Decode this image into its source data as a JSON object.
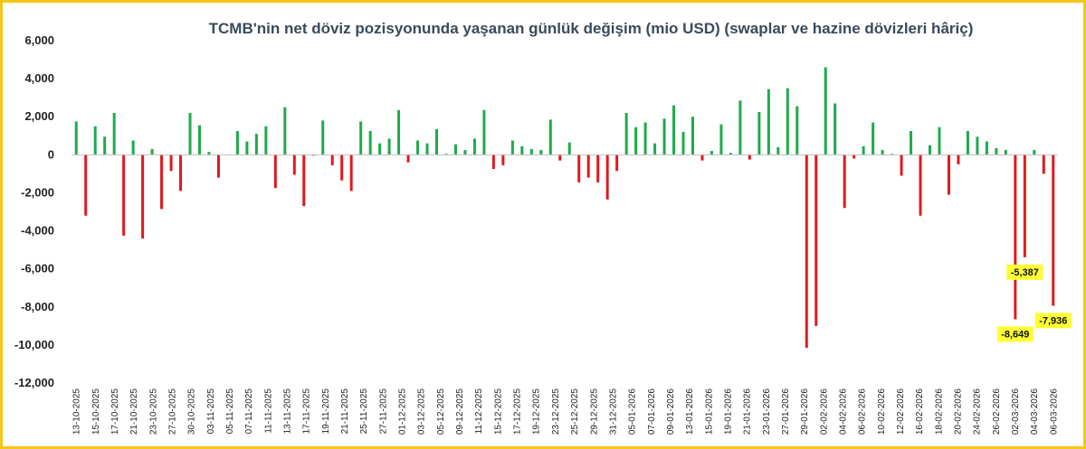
{
  "chart_data": {
    "type": "bar",
    "title": "TCMB'nin net döviz pozisyonunda yaşanan günlük değişim (mio USD) (swaplar ve hazine dövizleri hâriç)",
    "xlabel": "",
    "ylabel": "",
    "ylim": [
      -12000,
      6000
    ],
    "yticks": [
      6000,
      4000,
      2000,
      0,
      -2000,
      -4000,
      -6000,
      -8000,
      -10000,
      -12000
    ],
    "ytick_labels": [
      "6,000",
      "4,000",
      "2,000",
      "0",
      "-2,000",
      "-4,000",
      "-6,000",
      "-8,000",
      "-10,000",
      "-12,000"
    ],
    "grid": false,
    "legend": "none",
    "positive_color": "#1faa4b",
    "negative_color": "#e0191e",
    "highlight_color": "#ffff33",
    "tick_labels": [
      "13-10-2025",
      "15-10-2025",
      "17-10-2025",
      "21-10-2025",
      "23-10-2025",
      "27-10-2025",
      "30-10-2025",
      "03-11-2025",
      "05-11-2025",
      "07-11-2025",
      "11-11-2025",
      "13-11-2025",
      "17-11-2025",
      "19-11-2025",
      "21-11-2025",
      "25-11-2025",
      "27-11-2025",
      "01-12-2025",
      "03-12-2025",
      "05-12-2025",
      "09-12-2025",
      "11-12-2025",
      "15-12-2025",
      "17-12-2025",
      "19-12-2025",
      "23-12-2025",
      "25-12-2025",
      "29-12-2025",
      "31-12-2025",
      "05-01-2026",
      "07-01-2026",
      "09-01-2026",
      "13-01-2026",
      "15-01-2026",
      "19-01-2026",
      "21-01-2026",
      "23-01-2026",
      "27-01-2026",
      "29-01-2026",
      "02-02-2026",
      "04-02-2026",
      "06-02-2026",
      "10-02-2026",
      "12-02-2026",
      "16-02-2026",
      "18-02-2026",
      "20-02-2026",
      "24-02-2026",
      "26-02-2026",
      "02-03-2026",
      "04-03-2026",
      "06-03-2026"
    ],
    "values": [
      1750,
      -3200,
      1500,
      950,
      2200,
      -4250,
      750,
      -4400,
      300,
      -2850,
      -850,
      -1900,
      2200,
      1550,
      150,
      -1200,
      0,
      1250,
      700,
      1100,
      1500,
      -1750,
      2500,
      -1050,
      -2700,
      -50,
      1800,
      -550,
      -1350,
      -1900,
      1750,
      1250,
      600,
      850,
      2350,
      -400,
      750,
      600,
      1350,
      50,
      550,
      250,
      850,
      2350,
      -750,
      -550,
      750,
      450,
      300,
      250,
      1850,
      -300,
      650,
      -1450,
      -1200,
      -1450,
      -2350,
      -850,
      2200,
      1450,
      1700,
      600,
      1900,
      2600,
      1200,
      2000,
      -300,
      200,
      1600,
      100,
      2850,
      -250,
      2250,
      3450,
      400,
      3500,
      2550,
      -10150,
      -9000,
      4600,
      2700,
      -2800,
      -200,
      450,
      1700,
      250,
      50,
      -1100,
      1250,
      -3200,
      500,
      1450,
      -2100,
      -500,
      1250,
      950,
      700,
      350,
      250,
      -8649,
      -5387,
      250,
      -1000,
      -7936
    ],
    "annotations": [
      {
        "index": 99,
        "label": "-8,649"
      },
      {
        "index": 100,
        "label": "-5,387"
      },
      {
        "index": 103,
        "label": "-7,936"
      }
    ]
  }
}
